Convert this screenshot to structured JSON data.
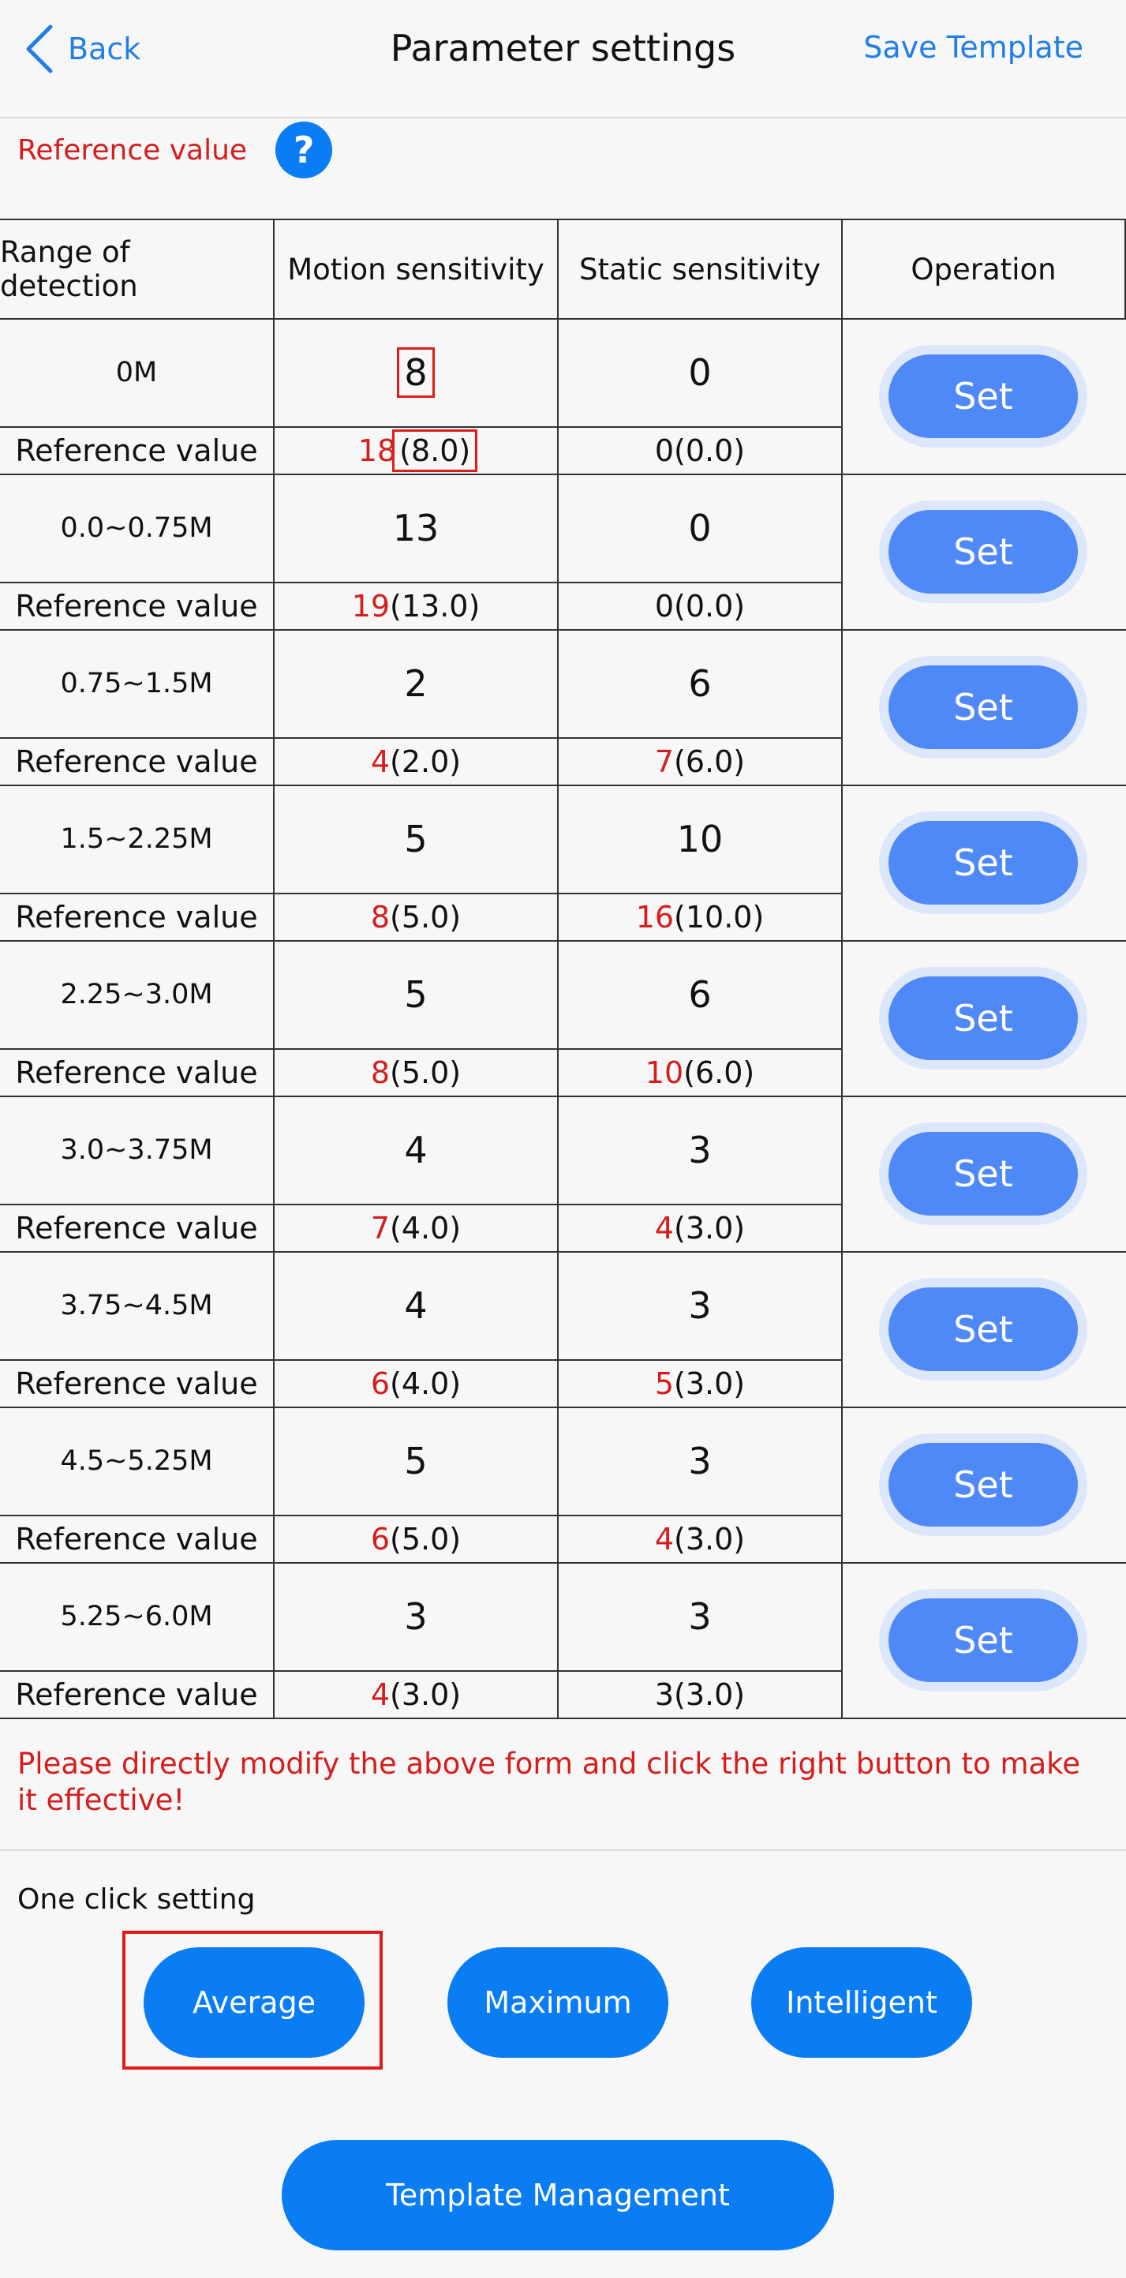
{
  "header": {
    "back_label": "Back",
    "title": "Parameter settings",
    "save_template": "Save Template"
  },
  "reference": {
    "label": "Reference value",
    "help_symbol": "?"
  },
  "table": {
    "headers": [
      "Range of detection",
      "Motion sensitivity",
      "Static sensitivity",
      "Operation"
    ],
    "ref_row_label": "Reference value",
    "set_label": "Set",
    "rows": [
      {
        "range": "0M",
        "motion": "8",
        "static": "0",
        "motion_ref_red": "18",
        "motion_ref": "(8.0)",
        "static_ref_red": "",
        "static_ref": "0(0.0)"
      },
      {
        "range": "0.0~0.75M",
        "motion": "13",
        "static": "0",
        "motion_ref_red": "19",
        "motion_ref": "(13.0)",
        "static_ref_red": "",
        "static_ref": "0(0.0)"
      },
      {
        "range": "0.75~1.5M",
        "motion": "2",
        "static": "6",
        "motion_ref_red": "4",
        "motion_ref": "(2.0)",
        "static_ref_red": "7",
        "static_ref": "(6.0)"
      },
      {
        "range": "1.5~2.25M",
        "motion": "5",
        "static": "10",
        "motion_ref_red": "8",
        "motion_ref": "(5.0)",
        "static_ref_red": "16",
        "static_ref": "(10.0)"
      },
      {
        "range": "2.25~3.0M",
        "motion": "5",
        "static": "6",
        "motion_ref_red": "8",
        "motion_ref": "(5.0)",
        "static_ref_red": "10",
        "static_ref": "(6.0)"
      },
      {
        "range": "3.0~3.75M",
        "motion": "4",
        "static": "3",
        "motion_ref_red": "7",
        "motion_ref": "(4.0)",
        "static_ref_red": "4",
        "static_ref": "(3.0)"
      },
      {
        "range": "3.75~4.5M",
        "motion": "4",
        "static": "3",
        "motion_ref_red": "6",
        "motion_ref": "(4.0)",
        "static_ref_red": "5",
        "static_ref": "(3.0)"
      },
      {
        "range": "4.5~5.25M",
        "motion": "5",
        "static": "3",
        "motion_ref_red": "6",
        "motion_ref": "(5.0)",
        "static_ref_red": "4",
        "static_ref": "(3.0)"
      },
      {
        "range": "5.25~6.0M",
        "motion": "3",
        "static": "3",
        "motion_ref_red": "4",
        "motion_ref": "(3.0)",
        "static_ref_red": "",
        "static_ref": "3(3.0)"
      }
    ]
  },
  "note": "Please directly modify the above form and click the right button to make it effective!",
  "one_click": {
    "label": "One click setting",
    "buttons": [
      "Average",
      "Maximum",
      "Intelligent"
    ]
  },
  "template_management": "Template Management",
  "colors": {
    "accent": "#0a7cf4",
    "set_button": "#4f88f7",
    "reference_red": "#d61d1d",
    "highlight_red": "#e01b1b"
  }
}
